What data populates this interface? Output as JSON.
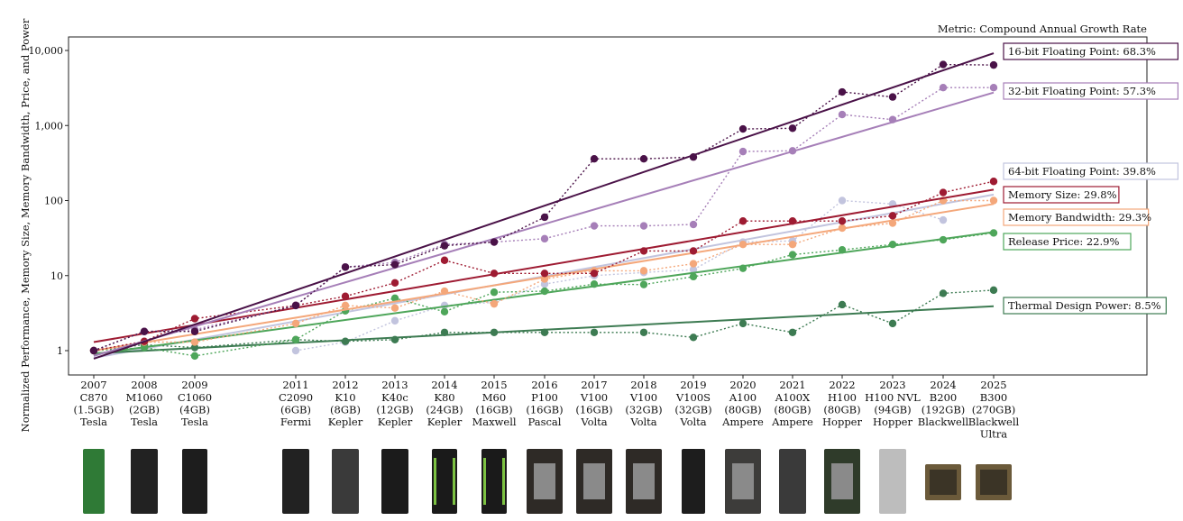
{
  "chart_data": {
    "type": "line",
    "yscale": "log",
    "ylim": [
      0.7,
      15000
    ],
    "ylabel": "Normalized Performance, Memory Size, Memory Bandwidth, Price, and Power",
    "metric_note": "Metric: Compound Annual Growth Rate",
    "ytick_values": [
      1,
      10,
      100,
      1000,
      10000
    ],
    "ytick_labels": [
      "1",
      "10",
      "100",
      "1,000",
      "10,000"
    ],
    "x_years": [
      2007,
      2008,
      2009,
      2011,
      2012,
      2013,
      2014,
      2015,
      2016,
      2017,
      2018,
      2019,
      2020,
      2021,
      2022,
      2023,
      2024,
      2025
    ],
    "categories": [
      {
        "year": "2007",
        "lines": [
          "C870",
          "(1.5GB)",
          "Tesla"
        ]
      },
      {
        "year": "2008",
        "lines": [
          "M1060",
          "(2GB)",
          "Tesla"
        ]
      },
      {
        "year": "2009",
        "lines": [
          "C1060",
          "(4GB)",
          "Tesla"
        ]
      },
      {
        "year": "2011",
        "lines": [
          "C2090",
          "(6GB)",
          "Fermi"
        ]
      },
      {
        "year": "2012",
        "lines": [
          "K10",
          "(8GB)",
          "Kepler"
        ]
      },
      {
        "year": "2013",
        "lines": [
          "K40c",
          "(12GB)",
          "Kepler"
        ]
      },
      {
        "year": "2014",
        "lines": [
          "K80",
          "(24GB)",
          "Kepler"
        ]
      },
      {
        "year": "2015",
        "lines": [
          "M60",
          "(16GB)",
          "Maxwell"
        ]
      },
      {
        "year": "2016",
        "lines": [
          "P100",
          "(16GB)",
          "Pascal"
        ]
      },
      {
        "year": "2017",
        "lines": [
          "V100",
          "(16GB)",
          "Volta"
        ]
      },
      {
        "year": "2018",
        "lines": [
          "V100",
          "(32GB)",
          "Volta"
        ]
      },
      {
        "year": "2019",
        "lines": [
          "V100S",
          "(32GB)",
          "Volta"
        ]
      },
      {
        "year": "2020",
        "lines": [
          "A100",
          "(80GB)",
          "Ampere"
        ]
      },
      {
        "year": "2021",
        "lines": [
          "A100X",
          "(80GB)",
          "Ampere"
        ]
      },
      {
        "year": "2022",
        "lines": [
          "H100",
          "(80GB)",
          "Hopper"
        ]
      },
      {
        "year": "2023",
        "lines": [
          "H100 NVL",
          "(94GB)",
          "Hopper"
        ]
      },
      {
        "year": "2024",
        "lines": [
          "B200",
          "(192GB)",
          "Blackwell"
        ]
      },
      {
        "year": "2025",
        "lines": [
          "B300",
          "(270GB)",
          "Blackwell",
          "Ultra"
        ]
      }
    ],
    "series": [
      {
        "name": "16-bit Floating Point",
        "label": "16-bit Floating Point: 68.3%",
        "color": "#4a1248",
        "trend_start": 0.78,
        "trend_end": 9200,
        "points": [
          [
            2007,
            1
          ],
          [
            2008,
            1.8
          ],
          [
            2009,
            1.8
          ],
          [
            2011,
            4
          ],
          [
            2012,
            13
          ],
          [
            2013,
            14
          ],
          [
            2014,
            25
          ],
          [
            2015,
            28
          ],
          [
            2016,
            60
          ],
          [
            2017,
            360
          ],
          [
            2018,
            360
          ],
          [
            2019,
            380
          ],
          [
            2020,
            900
          ],
          [
            2021,
            920
          ],
          [
            2022,
            2800
          ],
          [
            2023,
            2400
          ],
          [
            2024,
            6500
          ],
          [
            2025,
            6400
          ]
        ]
      },
      {
        "name": "32-bit Floating Point",
        "label": "32-bit Floating Point: 57.3%",
        "color": "#a67fb8",
        "trend_start": 0.85,
        "trend_end": 2750,
        "points": [
          [
            2007,
            1
          ],
          [
            2008,
            1.8
          ],
          [
            2009,
            1.9
          ],
          [
            2011,
            4
          ],
          [
            2012,
            13
          ],
          [
            2013,
            15
          ],
          [
            2014,
            26
          ],
          [
            2015,
            28
          ],
          [
            2016,
            31
          ],
          [
            2017,
            46
          ],
          [
            2018,
            46
          ],
          [
            2019,
            48
          ],
          [
            2020,
            450
          ],
          [
            2021,
            460
          ],
          [
            2022,
            1400
          ],
          [
            2023,
            1200
          ],
          [
            2024,
            3200
          ],
          [
            2025,
            3200
          ]
        ]
      },
      {
        "name": "64-bit Floating Point",
        "label": "64-bit Floating Point: 39.8%",
        "color": "#c2c4de",
        "trend_start": 0.8,
        "trend_end": 120,
        "points": [
          [
            2011,
            1
          ],
          [
            2012,
            1.3
          ],
          [
            2013,
            2.5
          ],
          [
            2014,
            4
          ],
          [
            2015,
            4.4
          ],
          [
            2016,
            7.7
          ],
          [
            2017,
            10
          ],
          [
            2018,
            11
          ],
          [
            2019,
            12
          ],
          [
            2020,
            28
          ],
          [
            2021,
            29
          ],
          [
            2022,
            100
          ],
          [
            2023,
            90
          ],
          [
            2024,
            55
          ]
        ]
      },
      {
        "name": "Memory Size",
        "label": "Memory Size: 29.8%",
        "color": "#9e1b32",
        "trend_start": 1.3,
        "trend_end": 140,
        "points": [
          [
            2007,
            1
          ],
          [
            2008,
            1.33
          ],
          [
            2009,
            2.67
          ],
          [
            2011,
            4
          ],
          [
            2012,
            5.3
          ],
          [
            2013,
            8
          ],
          [
            2014,
            16
          ],
          [
            2015,
            10.7
          ],
          [
            2016,
            10.7
          ],
          [
            2017,
            10.7
          ],
          [
            2018,
            21.3
          ],
          [
            2019,
            21.3
          ],
          [
            2020,
            53.3
          ],
          [
            2021,
            53.3
          ],
          [
            2022,
            53.3
          ],
          [
            2023,
            62.7
          ],
          [
            2024,
            128
          ],
          [
            2025,
            180
          ]
        ]
      },
      {
        "name": "Memory Bandwidth",
        "label": "Memory Bandwidth: 29.3%",
        "color": "#f4a77a",
        "trend_start": 1.0,
        "trend_end": 90,
        "points": [
          [
            2007,
            1
          ],
          [
            2008,
            1.3
          ],
          [
            2009,
            1.3
          ],
          [
            2011,
            2.3
          ],
          [
            2012,
            4
          ],
          [
            2013,
            3.7
          ],
          [
            2014,
            6.2
          ],
          [
            2015,
            4.2
          ],
          [
            2016,
            9
          ],
          [
            2017,
            11.6
          ],
          [
            2018,
            11.6
          ],
          [
            2019,
            14.4
          ],
          [
            2020,
            26
          ],
          [
            2021,
            26
          ],
          [
            2022,
            43
          ],
          [
            2023,
            50
          ],
          [
            2024,
            100
          ],
          [
            2025,
            100
          ]
        ]
      },
      {
        "name": "Release Price",
        "label": "Release Price: 22.9%",
        "color": "#4ea65a",
        "trend_start": 0.9,
        "trend_end": 38,
        "points": [
          [
            2007,
            1
          ],
          [
            2008,
            1.1
          ],
          [
            2009,
            0.85
          ],
          [
            2011,
            1.4
          ],
          [
            2012,
            3.4
          ],
          [
            2013,
            5
          ],
          [
            2014,
            3.3
          ],
          [
            2015,
            6
          ],
          [
            2016,
            6.2
          ],
          [
            2017,
            7.7
          ],
          [
            2018,
            7.6
          ],
          [
            2019,
            9.7
          ],
          [
            2020,
            12.5
          ],
          [
            2021,
            19
          ],
          [
            2022,
            22
          ],
          [
            2023,
            26
          ],
          [
            2024,
            30
          ],
          [
            2025,
            37
          ]
        ]
      },
      {
        "name": "Thermal Design Power",
        "label": "Thermal Design Power: 8.5%",
        "color": "#3d7b52",
        "trend_start": 0.92,
        "trend_end": 3.9,
        "points": [
          [
            2007,
            1
          ],
          [
            2008,
            1.2
          ],
          [
            2009,
            1.1
          ],
          [
            2011,
            1.4
          ],
          [
            2012,
            1.33
          ],
          [
            2013,
            1.4
          ],
          [
            2014,
            1.75
          ],
          [
            2015,
            1.75
          ],
          [
            2016,
            1.75
          ],
          [
            2017,
            1.75
          ],
          [
            2018,
            1.75
          ],
          [
            2019,
            1.5
          ],
          [
            2020,
            2.3
          ],
          [
            2021,
            1.75
          ],
          [
            2022,
            4.1
          ],
          [
            2023,
            2.3
          ],
          [
            2024,
            5.8
          ],
          [
            2025,
            6.4
          ]
        ]
      }
    ]
  }
}
